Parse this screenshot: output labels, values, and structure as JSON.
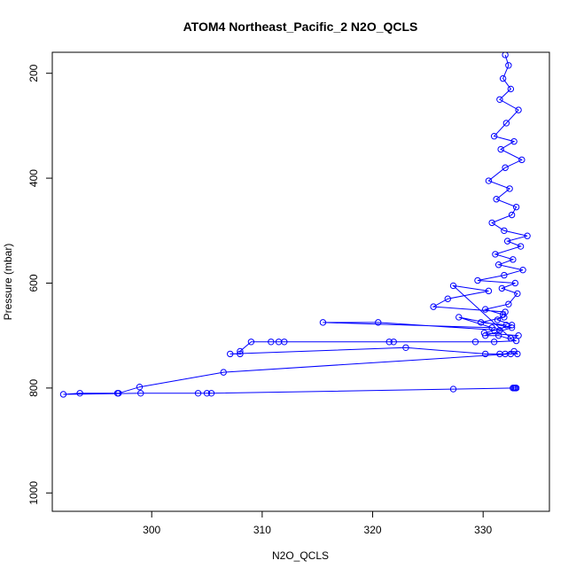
{
  "chart_data": {
    "type": "line",
    "title": "ATOM4 Northeast_Pacific_2 N2O_QCLS",
    "xlabel": "N2O_QCLS",
    "ylabel": "Pressure (mbar)",
    "xlim": [
      291,
      336
    ],
    "ylim": [
      1035,
      160
    ],
    "y_inverted": true,
    "x_ticks": [
      300,
      310,
      320,
      330
    ],
    "y_ticks": [
      200,
      400,
      600,
      800,
      1000
    ],
    "grid": false,
    "legend": "none",
    "series": [
      {
        "color": "#0000ff",
        "marker": "open-circle",
        "x": [
          332.0,
          332.3,
          331.8,
          332.5,
          331.5,
          333.2,
          332.1,
          331.0,
          332.8,
          331.6,
          333.5,
          332.0,
          330.5,
          332.4,
          331.2,
          333.0,
          332.6,
          330.8,
          331.9,
          334.0,
          332.2,
          333.4,
          331.1,
          332.7,
          331.4,
          333.6,
          331.9,
          329.5,
          332.9,
          331.7,
          333.1,
          332.3,
          330.2,
          331.8,
          331.3,
          332.6,
          331.0,
          330.1,
          333.2,
          332.5,
          327.3,
          330.5,
          326.8,
          325.5,
          332.0,
          331.9,
          329.8,
          332.1,
          331.5,
          320.5,
          315.5,
          330.8,
          327.8,
          332.6,
          330.2,
          331.4,
          333.0,
          331.0,
          329.3,
          321.9,
          321.5,
          312.0,
          311.5,
          310.8,
          309.0,
          308.0,
          308.0,
          307.1,
          323.0,
          330.2,
          331.5,
          332.0,
          332.8,
          333.1,
          332.5,
          306.5,
          298.9,
          297.0,
          296.9,
          293.5,
          292.0,
          299.0,
          304.2,
          305.0,
          305.4,
          327.3,
          332.8,
          333.0,
          332.7,
          332.9
        ],
        "y": [
          165,
          185,
          210,
          230,
          250,
          270,
          295,
          320,
          330,
          345,
          365,
          380,
          405,
          420,
          440,
          455,
          470,
          485,
          500,
          510,
          520,
          530,
          545,
          555,
          565,
          575,
          585,
          595,
          600,
          610,
          620,
          640,
          650,
          660,
          670,
          680,
          690,
          695,
          700,
          705,
          605,
          615,
          630,
          645,
          655,
          665,
          675,
          680,
          690,
          675,
          675,
          685,
          665,
          685,
          700,
          700,
          710,
          712,
          712,
          712,
          712,
          712,
          712,
          712,
          712,
          730,
          735,
          735,
          723,
          735,
          735,
          735,
          730,
          735,
          735,
          770,
          798,
          810,
          810,
          810,
          812,
          810,
          810,
          810,
          810,
          802,
          800,
          800,
          800,
          800
        ]
      }
    ]
  }
}
